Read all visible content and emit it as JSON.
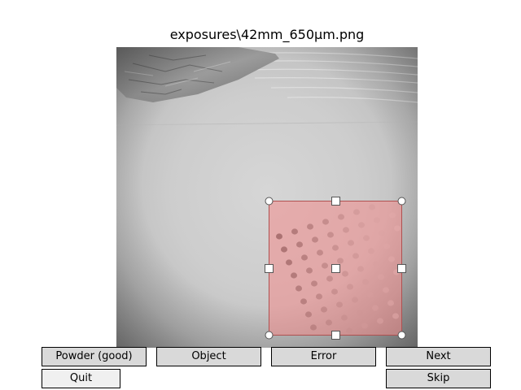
{
  "window": {
    "title": "exposures\\42mm_650µm.png"
  },
  "buttons": {
    "powder_good": "Powder (good)",
    "object": "Object",
    "error": "Error",
    "next": "Next",
    "quit": "Quit",
    "skip": "Skip"
  },
  "selection": {
    "fill_color": "#f28b8b",
    "edge_color": "#b05050",
    "handle_color": "#ffffff"
  }
}
